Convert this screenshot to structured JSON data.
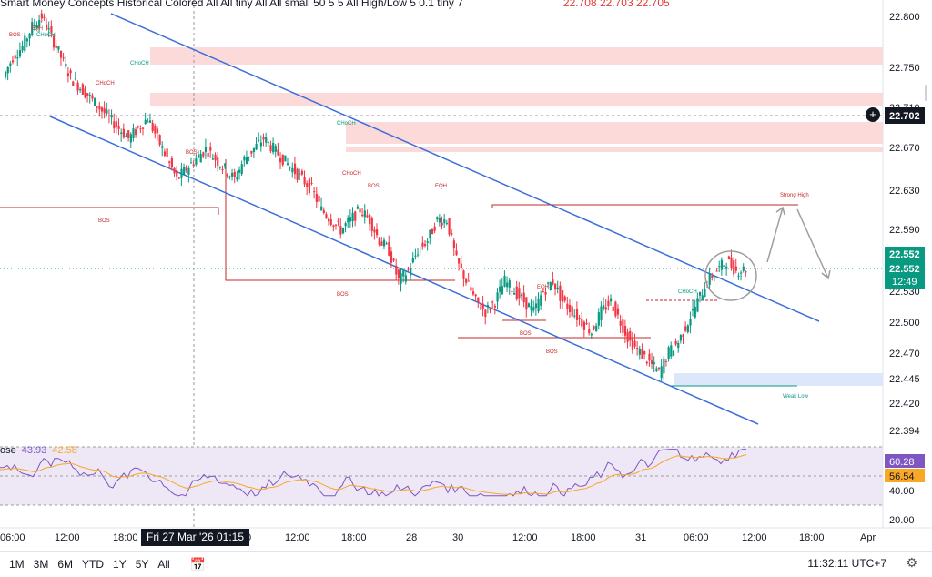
{
  "header": {
    "title": "Smart Money Concepts  Historical Colored All All tiny All All small 50 5 5 All High/Low 5 0.1 tiny 7",
    "ohlc": "22.708  22.703  22.705"
  },
  "price_axis": {
    "ticks": [
      "22.800",
      "22.750",
      "22.710",
      "22.670",
      "22.630",
      "22.590",
      "22.530",
      "22.500",
      "22.470",
      "22.445",
      "22.420",
      "22.394"
    ],
    "crosshair_price": "22.702",
    "last_price_1": "22.552",
    "last_price_2": "22.552",
    "countdown": "12:49"
  },
  "rsi": {
    "label": "ose",
    "value_rsi": "43.93",
    "value_ma": "42.58",
    "ticks": [
      "60.28",
      "56.54",
      "40.00",
      "20.00"
    ]
  },
  "time_axis": {
    "ticks": [
      "06:00",
      "12:00",
      "18:00",
      "0",
      "12:00",
      "18:00",
      "28",
      "30",
      "12:00",
      "18:00",
      "31",
      "06:00",
      "12:00",
      "18:00",
      "Apr"
    ],
    "crosshair_time": "Fri 27 Mar '26  01:15"
  },
  "bottom_bar": {
    "timeframes": [
      "1M",
      "3M",
      "6M",
      "YTD",
      "1Y",
      "5Y",
      "All"
    ],
    "clock": "11:32:11 UTC+7"
  },
  "annotations": [
    "BOS",
    "BOS",
    "BOS",
    "BOS",
    "BOS",
    "BOS",
    "BOS",
    "CHoCH",
    "CHoCH",
    "CHoCH",
    "CHoCH",
    "CHoCH",
    "CHoCH",
    "EQH",
    "EQH",
    "EQH",
    "Strong High",
    "Weak Low"
  ],
  "colors": {
    "up": "#089981",
    "down": "#f23645",
    "channel": "#3d6fd8",
    "zone_red": "#fcdada",
    "zone_blue": "#dce7fb",
    "rsi": "#7e57c2",
    "rsi_ma": "#f9a825"
  },
  "chart_data": {
    "type": "candlestick",
    "symbol_prices_approx": {
      "close": [
        22.74,
        22.76,
        22.77,
        22.79,
        22.8,
        22.78,
        22.76,
        22.74,
        22.73,
        22.72,
        22.71,
        22.7,
        22.69,
        22.68,
        22.69,
        22.7,
        22.68,
        22.66,
        22.64,
        22.65,
        22.66,
        22.67,
        22.66,
        22.65,
        22.64,
        22.66,
        22.67,
        22.68,
        22.67,
        22.66,
        22.65,
        22.64,
        22.63,
        22.61,
        22.6,
        22.59,
        22.6,
        22.61,
        22.6,
        22.58,
        22.57,
        22.54,
        22.55,
        22.57,
        22.58,
        22.6,
        22.6,
        22.56,
        22.54,
        22.52,
        22.51,
        22.52,
        22.54,
        22.53,
        22.52,
        22.51,
        22.53,
        22.54,
        22.52,
        22.51,
        22.5,
        22.49,
        22.51,
        22.52,
        22.5,
        22.48,
        22.47,
        22.46,
        22.45,
        22.47,
        22.48,
        22.5,
        22.52,
        22.54,
        22.55,
        22.56,
        22.55,
        22.552
      ],
      "ylim": [
        22.394,
        22.8
      ]
    },
    "levels": {
      "strong_high": 22.612,
      "weak_low": 22.44,
      "bos_1": 22.612,
      "bos_2": 22.545
    },
    "rsi_range": [
      20,
      70
    ]
  }
}
